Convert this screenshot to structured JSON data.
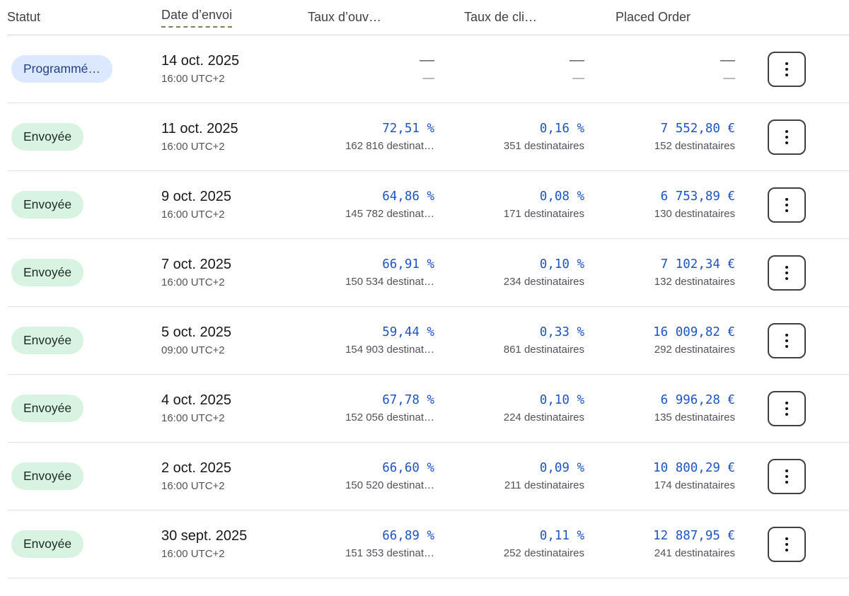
{
  "table": {
    "columns": [
      {
        "label": "Statut"
      },
      {
        "label": "Date d’envoi",
        "sorted": true
      },
      {
        "label": "Taux d’ouv…"
      },
      {
        "label": "Taux de cli…"
      },
      {
        "label": "Placed Order"
      }
    ],
    "rows": [
      {
        "empty": true,
        "status": {
          "label": "Programmé…",
          "type": "scheduled"
        },
        "date": "14 oct. 2025",
        "time": "16:00 UTC+2",
        "open_rate": {
          "value": "––",
          "sub": "––"
        },
        "click_rate": {
          "value": "––",
          "sub": "––"
        },
        "placed_order": {
          "value": "––",
          "sub": "––"
        }
      },
      {
        "status": {
          "label": "Envoyée",
          "type": "sent"
        },
        "date": "11 oct. 2025",
        "time": "16:00 UTC+2",
        "open_rate": {
          "value": "72,51 %",
          "sub": "162 816 destinat…"
        },
        "click_rate": {
          "value": "0,16 %",
          "sub": "351 destinataires"
        },
        "placed_order": {
          "value": "7 552,80 €",
          "sub": "152 destinataires"
        }
      },
      {
        "status": {
          "label": "Envoyée",
          "type": "sent"
        },
        "date": "9 oct. 2025",
        "time": "16:00 UTC+2",
        "open_rate": {
          "value": "64,86 %",
          "sub": "145 782 destinat…"
        },
        "click_rate": {
          "value": "0,08 %",
          "sub": "171 destinataires"
        },
        "placed_order": {
          "value": "6 753,89 €",
          "sub": "130 destinataires"
        }
      },
      {
        "status": {
          "label": "Envoyée",
          "type": "sent"
        },
        "date": "7 oct. 2025",
        "time": "16:00 UTC+2",
        "open_rate": {
          "value": "66,91 %",
          "sub": "150 534 destinat…"
        },
        "click_rate": {
          "value": "0,10 %",
          "sub": "234 destinataires"
        },
        "placed_order": {
          "value": "7 102,34 €",
          "sub": "132 destinataires"
        }
      },
      {
        "status": {
          "label": "Envoyée",
          "type": "sent"
        },
        "date": "5 oct. 2025",
        "time": "09:00 UTC+2",
        "open_rate": {
          "value": "59,44 %",
          "sub": "154 903 destinat…"
        },
        "click_rate": {
          "value": "0,33 %",
          "sub": "861 destinataires"
        },
        "placed_order": {
          "value": "16 009,82 €",
          "sub": "292 destinataires"
        }
      },
      {
        "status": {
          "label": "Envoyée",
          "type": "sent"
        },
        "date": "4 oct. 2025",
        "time": "16:00 UTC+2",
        "open_rate": {
          "value": "67,78 %",
          "sub": "152 056 destinat…"
        },
        "click_rate": {
          "value": "0,10 %",
          "sub": "224 destinataires"
        },
        "placed_order": {
          "value": "6 996,28 €",
          "sub": "135 destinataires"
        }
      },
      {
        "status": {
          "label": "Envoyée",
          "type": "sent"
        },
        "date": "2 oct. 2025",
        "time": "16:00 UTC+2",
        "open_rate": {
          "value": "66,60 %",
          "sub": "150 520 destinat…"
        },
        "click_rate": {
          "value": "0,09 %",
          "sub": "211 destinataires"
        },
        "placed_order": {
          "value": "10 800,29 €",
          "sub": "174 destinataires"
        }
      },
      {
        "status": {
          "label": "Envoyée",
          "type": "sent"
        },
        "date": "30 sept. 2025",
        "time": "16:00 UTC+2",
        "open_rate": {
          "value": "66,89 %",
          "sub": "151 353 destinat…"
        },
        "click_rate": {
          "value": "0,11 %",
          "sub": "252 destinataires"
        },
        "placed_order": {
          "value": "12 887,95 €",
          "sub": "241 destinataires"
        }
      }
    ]
  },
  "colors": {
    "accent_blue": "#1e55c4",
    "badge_sent_bg": "#d8f3e1",
    "badge_sent_text": "#1c2a22",
    "badge_scheduled_bg": "#dbe8fd",
    "badge_scheduled_text": "#27408b",
    "secondary_text": "#52525b",
    "row_divider": "#e4e4e7",
    "sort_underline": "#8c7a5f"
  }
}
